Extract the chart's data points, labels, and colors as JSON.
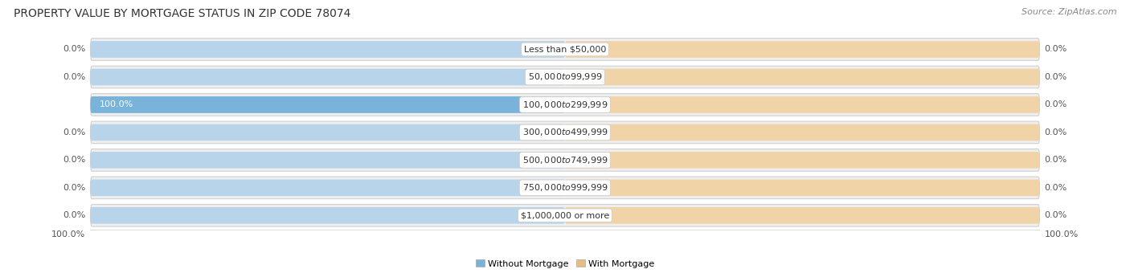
{
  "title": "PROPERTY VALUE BY MORTGAGE STATUS IN ZIP CODE 78074",
  "source": "Source: ZipAtlas.com",
  "categories": [
    "Less than $50,000",
    "$50,000 to $99,999",
    "$100,000 to $299,999",
    "$300,000 to $499,999",
    "$500,000 to $749,999",
    "$750,000 to $999,999",
    "$1,000,000 or more"
  ],
  "without_mortgage": [
    0.0,
    0.0,
    100.0,
    0.0,
    0.0,
    0.0,
    0.0
  ],
  "with_mortgage": [
    0.0,
    0.0,
    0.0,
    0.0,
    0.0,
    0.0,
    0.0
  ],
  "without_mortgage_color": "#7ab3d9",
  "with_mortgage_color": "#e8bc82",
  "bar_bg_left_color": "#b8d4ea",
  "bar_bg_right_color": "#f0d4a8",
  "row_bg_color": "#efefef",
  "row_border_color": "#d0d0d0",
  "label_color_dark": "#555555",
  "label_color_white": "#ffffff",
  "axis_max": 100.0,
  "title_fontsize": 10,
  "source_fontsize": 8,
  "label_fontsize": 8,
  "category_fontsize": 8,
  "legend_fontsize": 8,
  "axis_label_fontsize": 8
}
